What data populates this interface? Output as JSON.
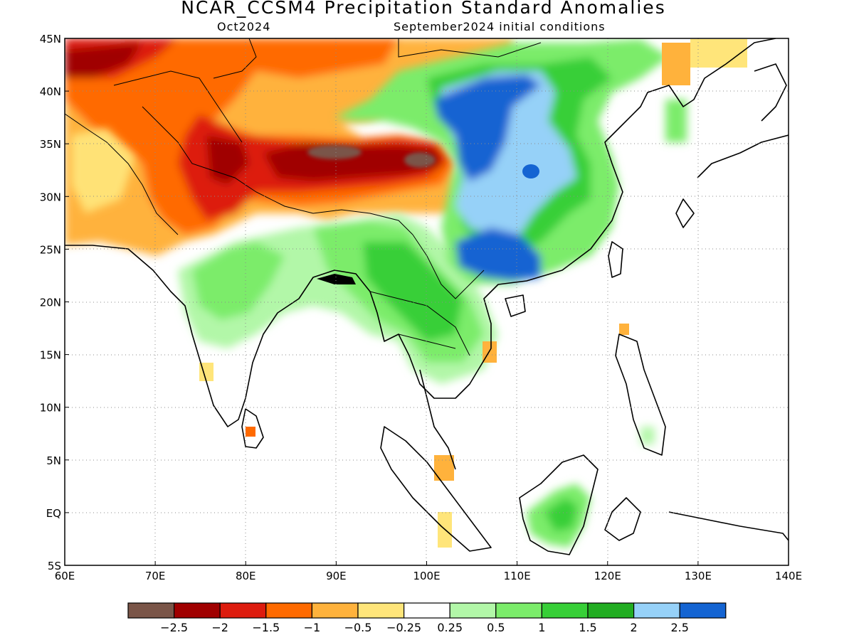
{
  "title": "NCAR_CCSM4 Precipitation Standard Anomalies",
  "subtitle_left": "Oct2024",
  "subtitle_right": "September2024 initial conditions",
  "axes": {
    "lon_ticks": [
      "60E",
      "70E",
      "80E",
      "90E",
      "100E",
      "110E",
      "120E",
      "130E",
      "140E"
    ],
    "lat_ticks": [
      "45N",
      "40N",
      "35N",
      "30N",
      "25N",
      "20N",
      "15N",
      "10N",
      "5N",
      "EQ",
      "5S"
    ],
    "lon_range": [
      60,
      140
    ],
    "lat_range": [
      -5,
      45
    ],
    "grid": "dotted"
  },
  "colorbar": {
    "labels": [
      "-2.5",
      "-2",
      "-1.5",
      "-1",
      "-0.5",
      "-0.25",
      "0.25",
      "0.5",
      "1",
      "1.5",
      "2",
      "2.5"
    ],
    "colors": [
      "#7a5548",
      "#a00000",
      "#dd1c0e",
      "#ff6a00",
      "#ffb23c",
      "#ffe57a",
      "#ffffff",
      "#b2f7a8",
      "#7bec6a",
      "#37cf37",
      "#22ad22",
      "#96d1f8",
      "#1464d2"
    ]
  },
  "chart_data": {
    "type": "heatmap",
    "variable": "precipitation standard anomaly",
    "model": "NCAR_CCSM4",
    "target": "Oct2024",
    "initial_conditions": "September2024",
    "xlim": [
      60,
      140
    ],
    "ylim": [
      -5,
      45
    ],
    "anomaly_regions": [
      {
        "lon": [
          60,
          100
        ],
        "lat": [
          35,
          45
        ],
        "value": -1
      },
      {
        "lon": [
          74,
          100
        ],
        "lat": [
          30,
          35
        ],
        "value": -2
      },
      {
        "lon": [
          91,
          100
        ],
        "lat": [
          32,
          34
        ],
        "value": -2.5
      },
      {
        "lon": [
          108,
          114
        ],
        "lat": [
          26,
          40
        ],
        "value": 2.5
      },
      {
        "lon": [
          90,
          106
        ],
        "lat": [
          15,
          25
        ],
        "value": 1
      },
      {
        "lon": [
          112,
          118
        ],
        "lat": [
          -1,
          1
        ],
        "value": 1
      }
    ]
  }
}
